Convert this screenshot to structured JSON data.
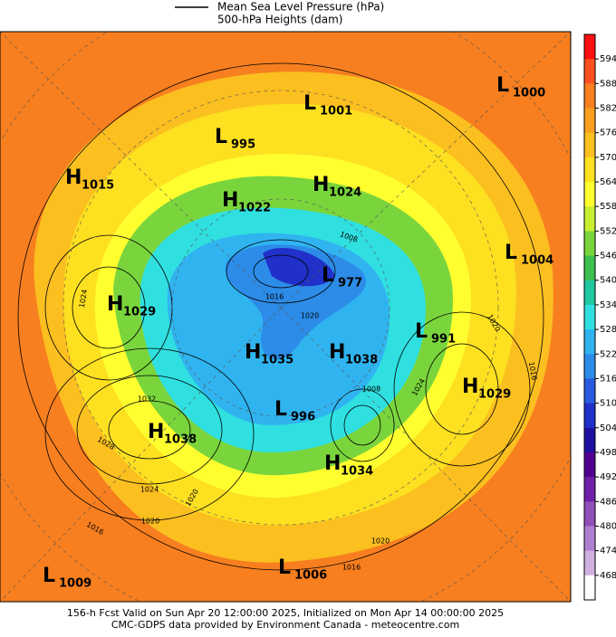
{
  "legend": [
    "Mean Sea Level Pressure (hPa)",
    "500-hPa Heights (dam)"
  ],
  "pressure_centers": [
    {
      "letter": "L",
      "value": 1000
    },
    {
      "letter": "L",
      "value": 1001
    },
    {
      "letter": "L",
      "value": 995
    },
    {
      "letter": "H",
      "value": 1015
    },
    {
      "letter": "H",
      "value": 1024
    },
    {
      "letter": "H",
      "value": 1022
    },
    {
      "letter": "L",
      "value": 1004
    },
    {
      "letter": "L",
      "value": 977
    },
    {
      "letter": "H",
      "value": 1029
    },
    {
      "letter": "L",
      "value": 991
    },
    {
      "letter": "H",
      "value": 1035
    },
    {
      "letter": "H",
      "value": 1038
    },
    {
      "letter": "H",
      "value": 1029
    },
    {
      "letter": "L",
      "value": 996
    },
    {
      "letter": "H",
      "value": 1038
    },
    {
      "letter": "H",
      "value": 1034
    },
    {
      "letter": "L",
      "value": 1009
    },
    {
      "letter": "L",
      "value": 1006
    }
  ],
  "isobar_labels": [
    1024,
    1032,
    1028,
    1024,
    1020,
    1016,
    1020,
    1016,
    1020,
    1016,
    1024,
    1008,
    1016,
    1020,
    1020,
    1008
  ],
  "colorbar": {
    "labels": [
      594,
      588,
      582,
      576,
      570,
      564,
      558,
      552,
      546,
      540,
      534,
      528,
      522,
      516,
      510,
      504,
      498,
      492,
      486,
      480,
      474,
      468
    ],
    "colors": [
      "#ff1010",
      "#ff5020",
      "#f77f1f",
      "#f9a020",
      "#fbbf20",
      "#fde020",
      "#ffff30",
      "#c8f030",
      "#7ad53c",
      "#3cc050",
      "#20c8a0",
      "#30e0e0",
      "#30b4f0",
      "#2c8ce8",
      "#2a5ae0",
      "#2030c8",
      "#2010a0",
      "#500090",
      "#7020a8",
      "#9050b8",
      "#b080d0",
      "#d0b0e0",
      "#ffffff"
    ]
  },
  "footer": [
    "156-h Fcst Valid on Sun Apr 20 12:00:00 2025, Initialized on Mon Apr 14 00:00:00 2025",
    "CMC-GDPS data provided by Environment Canada - meteocentre.com"
  ]
}
